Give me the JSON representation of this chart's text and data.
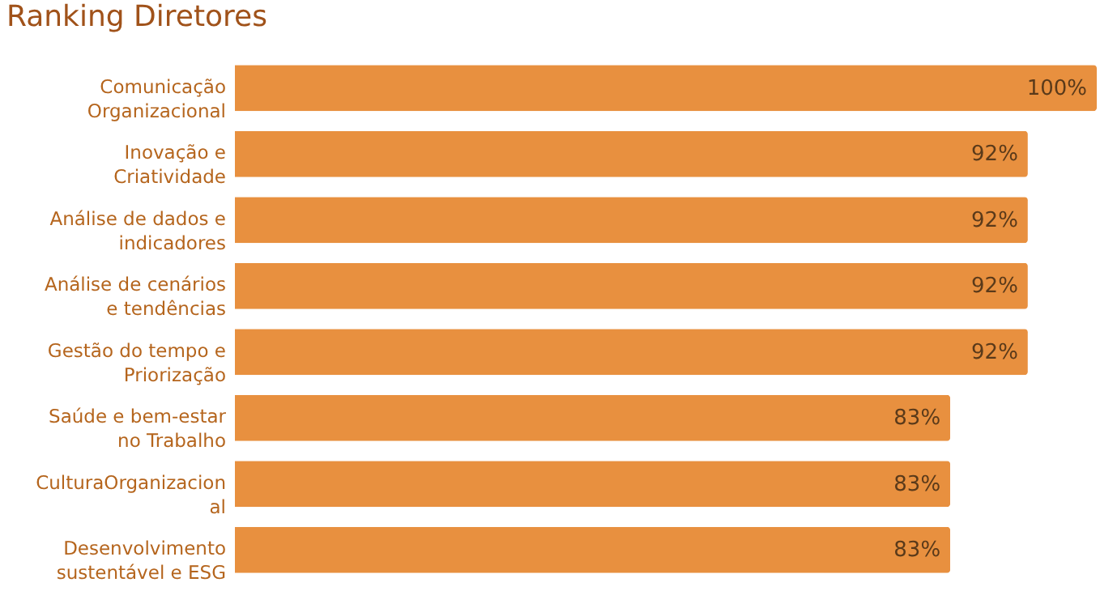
{
  "chart_data": {
    "type": "bar",
    "orientation": "horizontal",
    "title": "Ranking Diretores",
    "categories": [
      "Comunicação\nOrganizacional",
      "Inovação e\nCriatividade",
      "Análise de dados e\nindicadores",
      "Análise de cenários\ne tendências",
      "Gestão do tempo e\nPriorização",
      "Saúde e bem-estar\nno Trabalho",
      "CulturaOrganizacion\nal",
      "Desenvolvimento\nsustentável e ESG"
    ],
    "values": [
      100,
      92,
      92,
      92,
      92,
      83,
      83,
      83
    ],
    "value_labels": [
      "100%",
      "92%",
      "92%",
      "92%",
      "92%",
      "83%",
      "83%",
      "83%"
    ],
    "color": "#e8903f"
  }
}
